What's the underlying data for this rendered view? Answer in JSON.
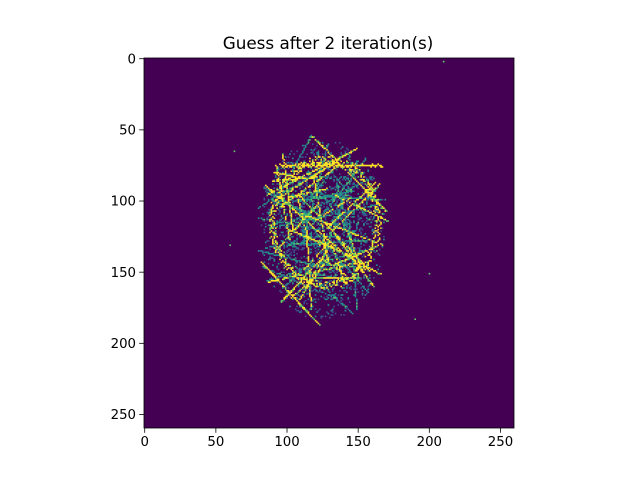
{
  "chart_data": {
    "type": "heatmap",
    "title": "Guess after 2 iteration(s)",
    "xlabel": "",
    "ylabel": "",
    "grid": false,
    "colormap": "viridis",
    "image_size": [
      260,
      260
    ],
    "xlim": [
      -0.5,
      259.5
    ],
    "ylim": [
      259.5,
      -0.5
    ],
    "x_ticks": [
      0,
      50,
      100,
      150,
      200,
      250
    ],
    "x_tick_labels": [
      "0",
      "50",
      "100",
      "150",
      "200",
      "250"
    ],
    "y_ticks": [
      0,
      50,
      100,
      150,
      200,
      250
    ],
    "y_tick_labels": [
      "0",
      "50",
      "100",
      "150",
      "200",
      "250"
    ],
    "background_value": 0,
    "colors": {
      "background": "#440154",
      "low": "#3b528b",
      "mid": "#21918c",
      "high": "#5ec962",
      "max": "#fde725"
    },
    "content_summary": {
      "blob_center": [
        125,
        120
      ],
      "blob_radius": [
        44,
        64
      ],
      "bright_ring_center": [
        127,
        115
      ],
      "bright_ring_radius": [
        37,
        44
      ]
    }
  }
}
